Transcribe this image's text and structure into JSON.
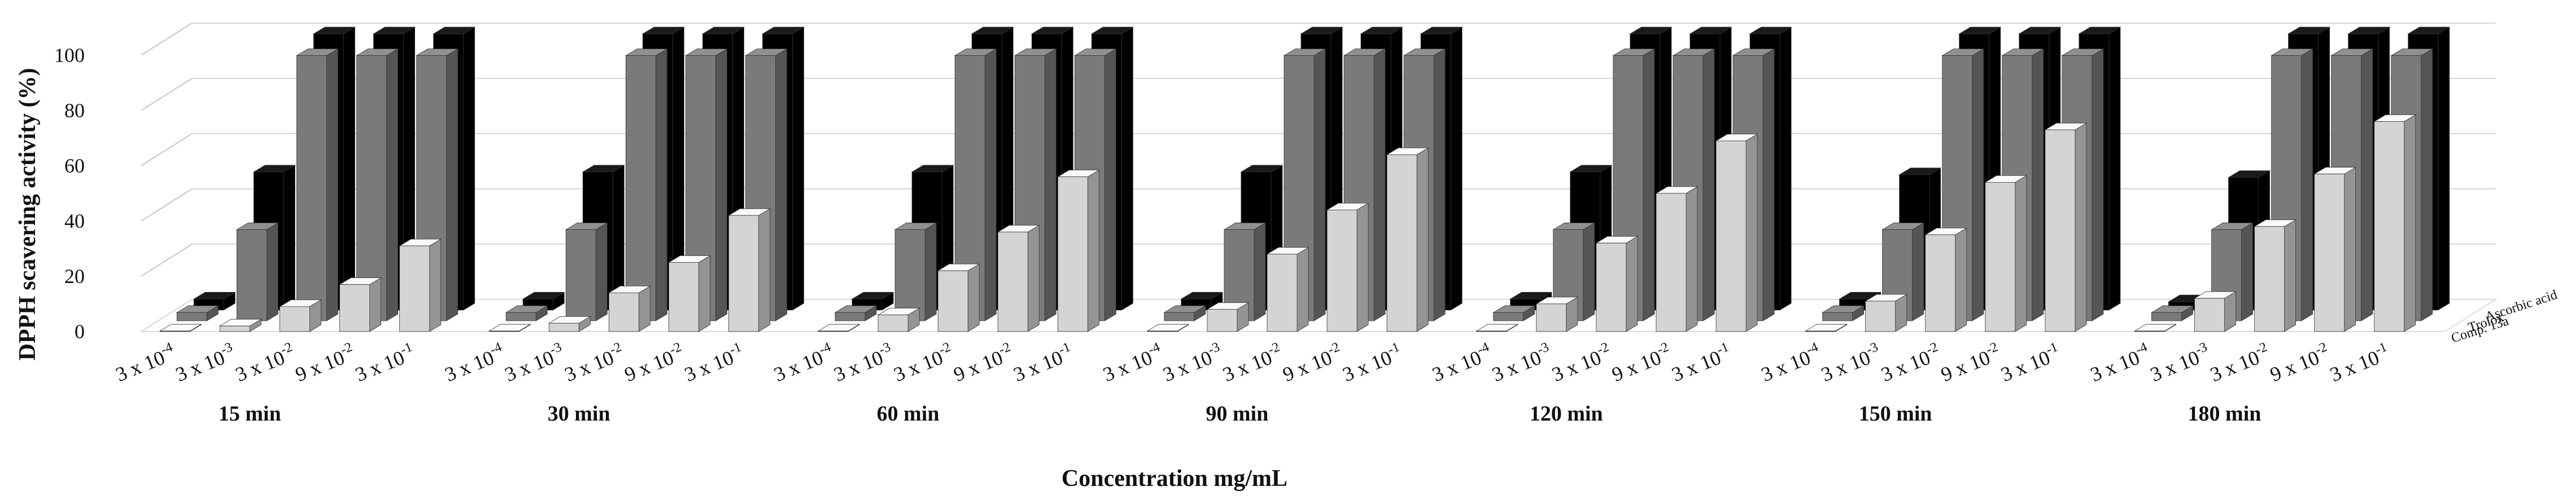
{
  "chart_data": {
    "type": "bar",
    "subtype": "3d-clustered",
    "title": "",
    "ylabel": "DPPH scavering activity (%)",
    "xlabel": "Concentration mg/mL",
    "ylim": [
      0,
      100
    ],
    "yticks": [
      0,
      20,
      40,
      60,
      80,
      100
    ],
    "ytick_labels": [
      "0",
      "20",
      "40",
      "60",
      "80",
      "100"
    ],
    "grid": true,
    "legend_position": "right",
    "concentration_labels": [
      {
        "base": "3 x 10",
        "exp": "-4"
      },
      {
        "base": "3 x 10",
        "exp": "-3"
      },
      {
        "base": "3 x 10",
        "exp": "-2"
      },
      {
        "base": "9 x 10",
        "exp": "-2"
      },
      {
        "base": "3 x 10",
        "exp": "-1"
      }
    ],
    "groups": [
      "15 min",
      "30 min",
      "60 min",
      "90 min",
      "120 min",
      "150 min",
      "180 min"
    ],
    "series": [
      {
        "name": "Ascorbic acid",
        "color": "#000000",
        "values": [
          [
            4,
            50,
            100,
            100,
            100
          ],
          [
            4,
            50,
            100,
            100,
            100
          ],
          [
            4,
            50,
            100,
            100,
            100
          ],
          [
            4,
            50,
            100,
            100,
            100
          ],
          [
            4,
            50,
            100,
            100,
            100
          ],
          [
            4,
            49,
            100,
            100,
            100
          ],
          [
            3,
            48,
            100,
            100,
            100
          ]
        ]
      },
      {
        "name": "Trolox",
        "color": "#7a7a7a",
        "values": [
          [
            3,
            33,
            96,
            96,
            96
          ],
          [
            3,
            33,
            96,
            96,
            96
          ],
          [
            3,
            33,
            96,
            96,
            96
          ],
          [
            3,
            33,
            96,
            96,
            96
          ],
          [
            3,
            33,
            96,
            96,
            96
          ],
          [
            3,
            33,
            96,
            96,
            96
          ],
          [
            3,
            33,
            96,
            96,
            96
          ]
        ]
      },
      {
        "name": "Comp. 13a",
        "color": "#d4d4d4",
        "values": [
          [
            0,
            2,
            9,
            17,
            31
          ],
          [
            0,
            3,
            14,
            25,
            42
          ],
          [
            0,
            6,
            22,
            36,
            56
          ],
          [
            0,
            8,
            28,
            44,
            64
          ],
          [
            0,
            10,
            32,
            50,
            69
          ],
          [
            0,
            11,
            35,
            54,
            73
          ],
          [
            0,
            12,
            38,
            57,
            76
          ]
        ]
      }
    ],
    "legend_entries": [
      "Ascorbic acid",
      "Trolox",
      "Comp. 13a"
    ]
  }
}
